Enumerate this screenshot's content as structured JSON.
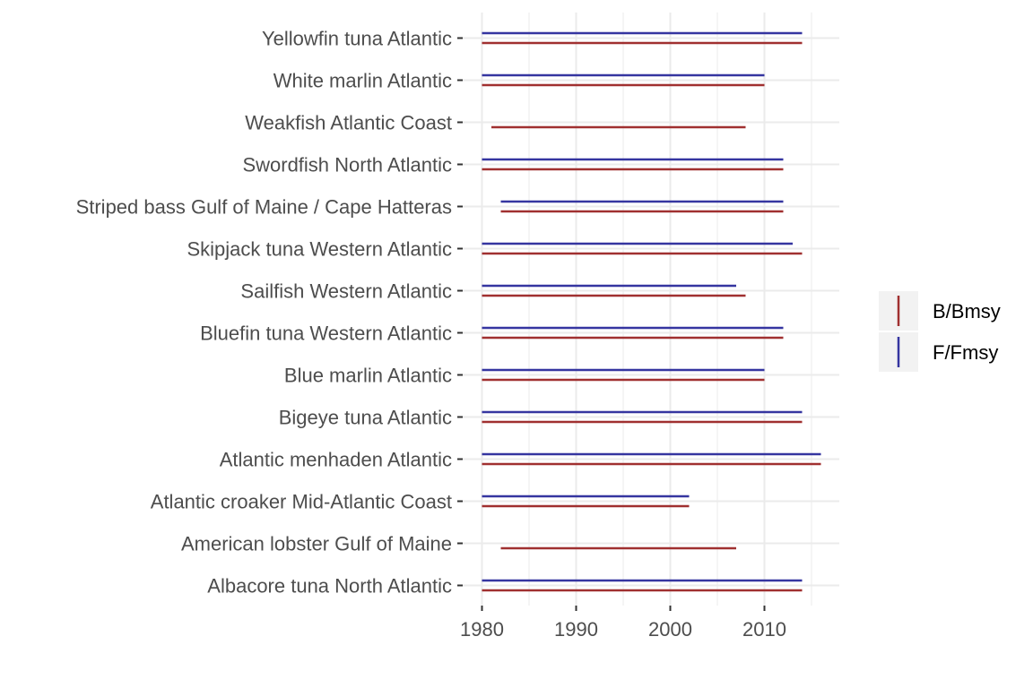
{
  "chart_data": {
    "type": "range-bar",
    "title": "",
    "xlabel": "",
    "ylabel": "",
    "xlim": [
      1980,
      2018
    ],
    "x_ticks": [
      1980,
      1990,
      2000,
      2010
    ],
    "grid": true,
    "legend_position": "right",
    "categories": [
      "Albacore tuna North Atlantic",
      "American lobster Gulf of Maine",
      "Atlantic croaker Mid-Atlantic Coast",
      "Atlantic menhaden Atlantic",
      "Bigeye tuna Atlantic",
      "Blue marlin Atlantic",
      "Bluefin tuna Western Atlantic",
      "Sailfish Western Atlantic",
      "Skipjack tuna Western Atlantic",
      "Striped bass Gulf of Maine / Cape Hatteras",
      "Swordfish North Atlantic",
      "Weakfish Atlantic Coast",
      "White marlin Atlantic",
      "Yellowfin tuna Atlantic"
    ],
    "series": [
      {
        "name": "B/Bmsy",
        "color": "#a03030",
        "ranges": [
          [
            1980,
            2014
          ],
          [
            1982,
            2007
          ],
          [
            1980,
            2002
          ],
          [
            1980,
            2016
          ],
          [
            1980,
            2014
          ],
          [
            1980,
            2010
          ],
          [
            1980,
            2012
          ],
          [
            1980,
            2008
          ],
          [
            1980,
            2014
          ],
          [
            1982,
            2012
          ],
          [
            1980,
            2012
          ],
          [
            1981,
            2008
          ],
          [
            1980,
            2010
          ],
          [
            1980,
            2014
          ]
        ]
      },
      {
        "name": "F/Fmsy",
        "color": "#3535a0",
        "ranges": [
          [
            1980,
            2014
          ],
          null,
          [
            1980,
            2002
          ],
          [
            1980,
            2016
          ],
          [
            1980,
            2014
          ],
          [
            1980,
            2010
          ],
          [
            1980,
            2012
          ],
          [
            1980,
            2007
          ],
          [
            1980,
            2013
          ],
          [
            1982,
            2012
          ],
          [
            1980,
            2012
          ],
          null,
          [
            1980,
            2010
          ],
          [
            1980,
            2014
          ]
        ]
      }
    ]
  }
}
